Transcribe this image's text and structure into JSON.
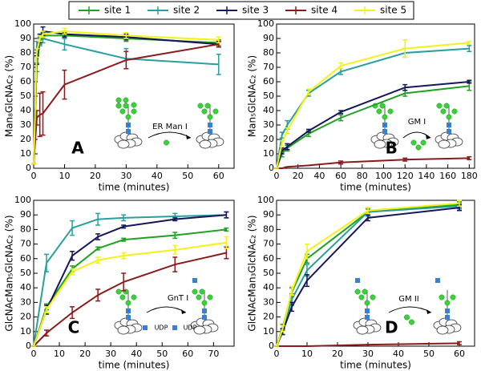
{
  "chart_data": [
    {
      "type": "line",
      "title": "A",
      "xlabel": "time (minutes)",
      "ylabel": "Man₈GlcNAc₂ (%)",
      "x": [
        0,
        1,
        2,
        3,
        10,
        30,
        60
      ],
      "xlim": [
        0,
        65
      ],
      "ylim": [
        0,
        100
      ],
      "xticks": [
        0,
        10,
        20,
        30,
        40,
        50,
        60
      ],
      "yticks": [
        0,
        10,
        20,
        30,
        40,
        50,
        60,
        70,
        80,
        90,
        100
      ],
      "annotations": [
        "ER Man I"
      ],
      "series": [
        {
          "name": "site 1",
          "color": "#21a121",
          "values": [
            3,
            70,
            88,
            92,
            92,
            90,
            87
          ],
          "errors": [
            0,
            3,
            2,
            2,
            2,
            2,
            2
          ]
        },
        {
          "name": "site 2",
          "color": "#2b9e9e",
          "values": [
            3,
            85,
            88,
            90,
            86,
            76,
            72
          ],
          "errors": [
            0,
            3,
            3,
            3,
            4,
            7,
            7
          ]
        },
        {
          "name": "site 3",
          "color": "#16165a",
          "values": [
            3,
            75,
            90,
            95,
            93,
            91,
            86
          ],
          "errors": [
            0,
            3,
            3,
            3,
            2,
            2,
            2
          ]
        },
        {
          "name": "site 4",
          "color": "#8b1b1b",
          "values": [
            3,
            35,
            37,
            38,
            58,
            75,
            86
          ],
          "errors": [
            0,
            5,
            15,
            15,
            10,
            6,
            2
          ]
        },
        {
          "name": "site 5",
          "color": "#f2f21a",
          "values": [
            3,
            80,
            90,
            93,
            95,
            92,
            89
          ],
          "errors": [
            0,
            3,
            2,
            2,
            2,
            2,
            2
          ]
        }
      ]
    },
    {
      "type": "line",
      "title": "B",
      "xlabel": "time (minutes)",
      "ylabel": "Man₅GlcNAc₂ (%)",
      "x": [
        0,
        5,
        10,
        30,
        60,
        120,
        180
      ],
      "xlim": [
        0,
        185
      ],
      "ylim": [
        0,
        100
      ],
      "xticks": [
        0,
        20,
        40,
        60,
        80,
        100,
        120,
        140,
        160,
        180
      ],
      "yticks": [
        0,
        10,
        20,
        30,
        40,
        50,
        60,
        70,
        80,
        90,
        100
      ],
      "annotations": [
        "GM I"
      ],
      "series": [
        {
          "name": "site 1",
          "color": "#21a121",
          "values": [
            0,
            10,
            14,
            24,
            35,
            52,
            57
          ],
          "errors": [
            0,
            2,
            2,
            2,
            2,
            2,
            3
          ]
        },
        {
          "name": "site 2",
          "color": "#2b9e9e",
          "values": [
            0,
            23,
            30,
            52,
            67,
            80,
            83
          ],
          "errors": [
            0,
            2,
            3,
            2,
            2,
            3,
            2
          ]
        },
        {
          "name": "site 3",
          "color": "#16165a",
          "values": [
            0,
            12,
            15,
            26,
            39,
            56,
            60
          ],
          "errors": [
            0,
            2,
            2,
            1,
            1,
            2,
            1
          ]
        },
        {
          "name": "site 4",
          "color": "#8b1b1b",
          "values": [
            0,
            0,
            1,
            2,
            4,
            6,
            7
          ],
          "errors": [
            0,
            0,
            0,
            0,
            1,
            1,
            1
          ]
        },
        {
          "name": "site 5",
          "color": "#f2f21a",
          "values": [
            0,
            17,
            26,
            53,
            71,
            83,
            87
          ],
          "errors": [
            0,
            2,
            2,
            2,
            2,
            6,
            1
          ]
        }
      ]
    },
    {
      "type": "line",
      "title": "C",
      "xlabel": "time (minutes)",
      "ylabel": "GlcNAcMan₅GlcNAc₂ (%)",
      "x": [
        0,
        5,
        15,
        25,
        35,
        55,
        75
      ],
      "xlim": [
        0,
        78
      ],
      "ylim": [
        0,
        100
      ],
      "xticks": [
        0,
        10,
        20,
        30,
        40,
        50,
        60,
        70
      ],
      "yticks": [
        0,
        10,
        20,
        30,
        40,
        50,
        60,
        70,
        80,
        90,
        100
      ],
      "annotations": [
        "GnT I",
        "UDP",
        "UDP"
      ],
      "series": [
        {
          "name": "site 1",
          "color": "#21a121",
          "values": [
            0,
            27,
            53,
            67,
            73,
            76,
            80
          ],
          "errors": [
            0,
            2,
            2,
            1,
            1,
            2,
            1
          ]
        },
        {
          "name": "site 2",
          "color": "#2b9e9e",
          "values": [
            0,
            57,
            81,
            87,
            88,
            89,
            90
          ],
          "errors": [
            0,
            6,
            5,
            4,
            2,
            2,
            2
          ]
        },
        {
          "name": "site 3",
          "color": "#16165a",
          "values": [
            0,
            25,
            62,
            75,
            82,
            87,
            90
          ],
          "errors": [
            0,
            3,
            3,
            2,
            1,
            1,
            2
          ]
        },
        {
          "name": "site 4",
          "color": "#8b1b1b",
          "values": [
            0,
            9,
            23,
            35,
            44,
            56,
            64
          ],
          "errors": [
            0,
            2,
            4,
            4,
            6,
            5,
            4
          ]
        },
        {
          "name": "site 5",
          "color": "#f2f21a",
          "values": [
            0,
            25,
            51,
            59,
            62,
            66,
            71
          ],
          "errors": [
            0,
            2,
            2,
            2,
            2,
            3,
            4
          ]
        }
      ]
    },
    {
      "type": "line",
      "title": "D",
      "xlabel": "time (minutes)",
      "ylabel": "GlcNAcMan₃GlcNAc₂ (%)",
      "x": [
        0,
        2,
        5,
        10,
        30,
        60
      ],
      "xlim": [
        0,
        65
      ],
      "ylim": [
        0,
        100
      ],
      "xticks": [
        0,
        10,
        20,
        30,
        40,
        50,
        60
      ],
      "yticks": [
        0,
        10,
        20,
        30,
        40,
        50,
        60,
        70,
        80,
        90,
        100
      ],
      "annotations": [
        "GM II"
      ],
      "series": [
        {
          "name": "site 1",
          "color": "#21a121",
          "values": [
            0,
            13,
            37,
            60,
            92,
            97
          ],
          "errors": [
            0,
            2,
            3,
            3,
            2,
            2
          ]
        },
        {
          "name": "site 2",
          "color": "#2b9e9e",
          "values": [
            0,
            10,
            32,
            52,
            92,
            96
          ],
          "errors": [
            0,
            2,
            4,
            4,
            3,
            2
          ]
        },
        {
          "name": "site 3",
          "color": "#16165a",
          "values": [
            0,
            10,
            27,
            45,
            88,
            95
          ],
          "errors": [
            0,
            2,
            3,
            4,
            2,
            2
          ]
        },
        {
          "name": "site 4",
          "color": "#8b1b1b",
          "values": [
            0,
            0,
            0,
            0,
            1,
            2
          ],
          "errors": [
            0,
            0,
            0,
            0,
            0,
            1
          ]
        },
        {
          "name": "site 5",
          "color": "#f2f21a",
          "values": [
            0,
            12,
            38,
            65,
            93,
            98
          ],
          "errors": [
            0,
            2,
            3,
            5,
            2,
            2
          ]
        }
      ]
    }
  ]
}
